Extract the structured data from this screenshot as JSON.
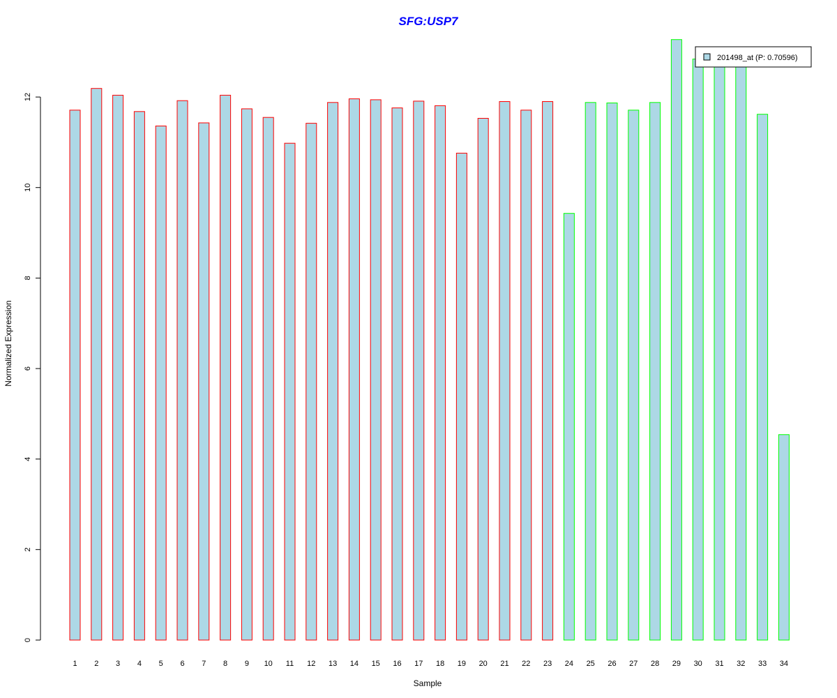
{
  "chart_data": {
    "type": "bar",
    "title": "SFG:USP7",
    "xlabel": "Sample",
    "ylabel": "Normalized Expression",
    "ylim": [
      0,
      13.5
    ],
    "yticks": [
      0,
      2,
      4,
      6,
      8,
      10,
      12
    ],
    "categories": [
      "1",
      "2",
      "3",
      "4",
      "5",
      "6",
      "7",
      "8",
      "9",
      "10",
      "11",
      "12",
      "13",
      "14",
      "15",
      "16",
      "17",
      "18",
      "19",
      "20",
      "21",
      "22",
      "23",
      "24",
      "25",
      "26",
      "27",
      "28",
      "29",
      "30",
      "31",
      "32",
      "33",
      "34"
    ],
    "values": [
      11.71,
      12.19,
      12.04,
      11.68,
      11.36,
      11.92,
      11.43,
      12.04,
      11.74,
      11.55,
      10.98,
      11.42,
      11.88,
      11.96,
      11.94,
      11.76,
      11.91,
      11.81,
      10.76,
      11.53,
      11.9,
      11.71,
      11.9,
      9.43,
      11.88,
      11.87,
      11.71,
      11.88,
      13.27,
      12.84,
      12.84,
      12.84,
      11.62,
      4.54
    ],
    "group_sizes": [
      23,
      11
    ],
    "bar_fill": "#add8e6",
    "group_border_colors": [
      "#ff0000",
      "#00ff00"
    ],
    "title_color": "#0000ff",
    "grid": false,
    "legend": {
      "placement": "top-right",
      "label": "201498_at (P: 0.70596)",
      "swatch_color": "#add8e6"
    }
  }
}
